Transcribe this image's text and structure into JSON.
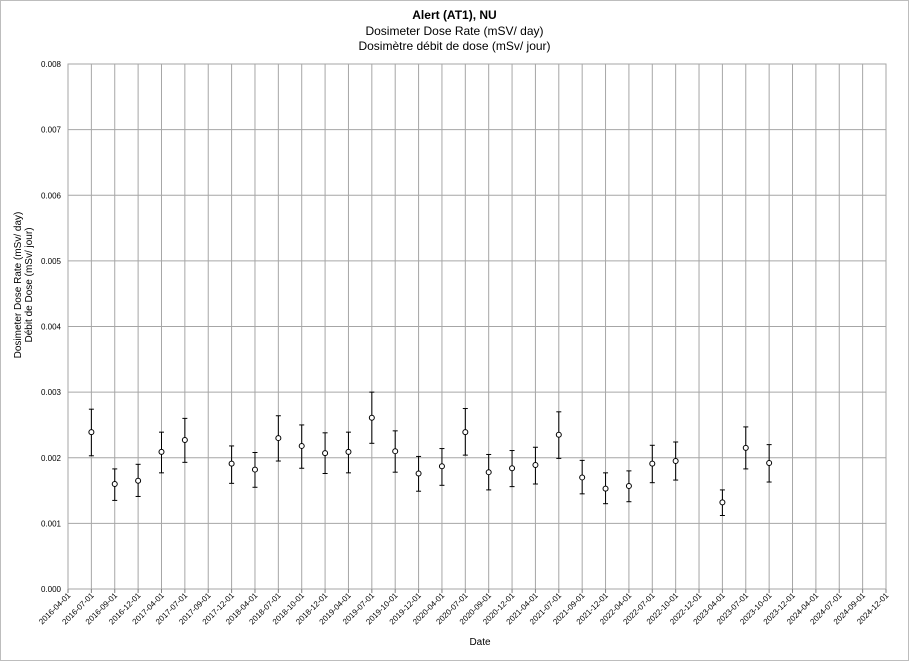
{
  "chart_data": {
    "type": "scatter",
    "title": "Alert (AT1), NU",
    "subtitle": "Dosimeter Dose Rate (mSV/ day)",
    "subtitle_fr": "Dosimètre débit de dose (mSv/ jour)",
    "xlabel": "Date",
    "ylabel": "Dosimeter Dose Rate (mSv/ day)",
    "ylabel_fr": "Débit de Dose (mSv/ jour)",
    "ylim": [
      0,
      0.008
    ],
    "yticks": [
      "0.000",
      "0.001",
      "0.002",
      "0.003",
      "0.004",
      "0.005",
      "0.006",
      "0.007",
      "0.008"
    ],
    "xticks": [
      "2016-04-01",
      "2016-07-01",
      "2016-09-01",
      "2016-12-01",
      "2017-04-01",
      "2017-07-01",
      "2017-09-01",
      "2017-12-01",
      "2018-04-01",
      "2018-07-01",
      "2018-10-01",
      "2018-12-01",
      "2019-04-01",
      "2019-07-01",
      "2019-10-01",
      "2019-12-01",
      "2020-04-01",
      "2020-07-01",
      "2020-09-01",
      "2020-12-01",
      "2021-04-01",
      "2021-07-01",
      "2021-09-01",
      "2021-12-01",
      "2022-04-01",
      "2022-07-01",
      "2022-10-01",
      "2022-12-01",
      "2023-04-01",
      "2023-07-01",
      "2023-10-01",
      "2023-12-01",
      "2024-04-01",
      "2024-07-01",
      "2024-09-01",
      "2024-12-01"
    ],
    "grid": true,
    "legend": "none",
    "point_color": "#000000",
    "points": [
      {
        "x": "2016-07-01",
        "y": 0.00239,
        "low": 0.00203,
        "high": 0.00274
      },
      {
        "x": "2016-09-01",
        "y": 0.0016,
        "low": 0.00135,
        "high": 0.00183
      },
      {
        "x": "2016-12-01",
        "y": 0.00165,
        "low": 0.00141,
        "high": 0.0019
      },
      {
        "x": "2017-04-01",
        "y": 0.00209,
        "low": 0.00177,
        "high": 0.00239
      },
      {
        "x": "2017-07-01",
        "y": 0.00227,
        "low": 0.00193,
        "high": 0.0026
      },
      {
        "x": "2017-12-01",
        "y": 0.00191,
        "low": 0.00161,
        "high": 0.00218
      },
      {
        "x": "2018-04-01",
        "y": 0.00182,
        "low": 0.00155,
        "high": 0.00208
      },
      {
        "x": "2018-07-01",
        "y": 0.0023,
        "low": 0.00195,
        "high": 0.00264
      },
      {
        "x": "2018-10-01",
        "y": 0.00218,
        "low": 0.00184,
        "high": 0.0025
      },
      {
        "x": "2018-12-01",
        "y": 0.00207,
        "low": 0.00176,
        "high": 0.00238
      },
      {
        "x": "2019-04-01",
        "y": 0.00209,
        "low": 0.00177,
        "high": 0.00239
      },
      {
        "x": "2019-07-01",
        "y": 0.00261,
        "low": 0.00222,
        "high": 0.003
      },
      {
        "x": "2019-10-01",
        "y": 0.0021,
        "low": 0.00178,
        "high": 0.00241
      },
      {
        "x": "2019-12-01",
        "y": 0.00176,
        "low": 0.00149,
        "high": 0.00202
      },
      {
        "x": "2020-04-01",
        "y": 0.00187,
        "low": 0.00158,
        "high": 0.00214
      },
      {
        "x": "2020-07-01",
        "y": 0.00239,
        "low": 0.00204,
        "high": 0.00275
      },
      {
        "x": "2020-09-01",
        "y": 0.00178,
        "low": 0.00151,
        "high": 0.00205
      },
      {
        "x": "2020-12-01",
        "y": 0.00184,
        "low": 0.00156,
        "high": 0.00211
      },
      {
        "x": "2021-04-01",
        "y": 0.00189,
        "low": 0.0016,
        "high": 0.00216
      },
      {
        "x": "2021-07-01",
        "y": 0.00235,
        "low": 0.00199,
        "high": 0.0027
      },
      {
        "x": "2021-09-01",
        "y": 0.0017,
        "low": 0.00145,
        "high": 0.00196
      },
      {
        "x": "2021-12-01",
        "y": 0.00153,
        "low": 0.0013,
        "high": 0.00177
      },
      {
        "x": "2022-04-01",
        "y": 0.00157,
        "low": 0.00133,
        "high": 0.0018
      },
      {
        "x": "2022-07-01",
        "y": 0.00191,
        "low": 0.00162,
        "high": 0.00219
      },
      {
        "x": "2022-10-01",
        "y": 0.00195,
        "low": 0.00166,
        "high": 0.00224
      },
      {
        "x": "2023-04-01",
        "y": 0.00132,
        "low": 0.00112,
        "high": 0.00151
      },
      {
        "x": "2023-07-01",
        "y": 0.00215,
        "low": 0.00183,
        "high": 0.00247
      },
      {
        "x": "2023-10-01",
        "y": 0.00192,
        "low": 0.00163,
        "high": 0.0022
      }
    ]
  }
}
